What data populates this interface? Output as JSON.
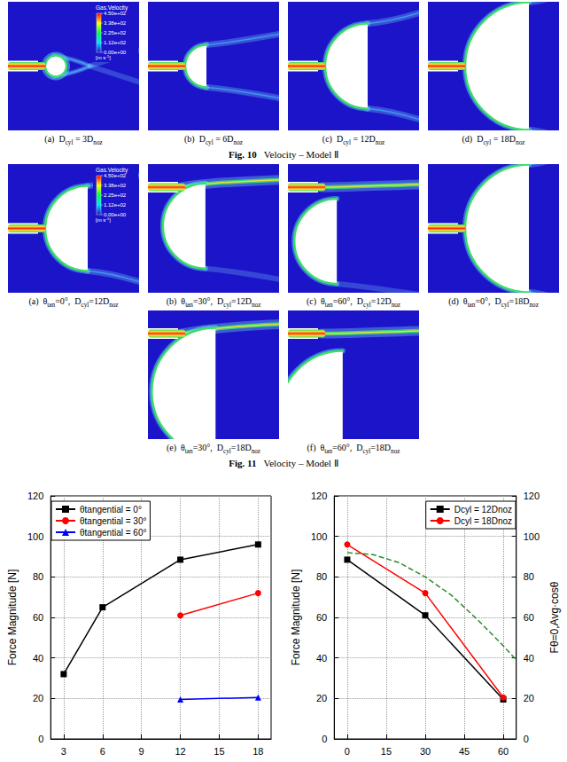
{
  "figures": [
    {
      "label": "Fig. 10",
      "title": "Velocity – Model Ⅱ",
      "colorbar": {
        "title": "Gas.Velocity",
        "range": [
          0,
          450
        ],
        "ticks": [
          {
            "value": 450,
            "label": "4.50e+02"
          },
          {
            "value": 338,
            "label": "3.38e+02"
          },
          {
            "value": 225,
            "label": "2.25e+02"
          },
          {
            "value": 112,
            "label": "1.12e+02"
          },
          {
            "value": 0,
            "label": "0.00e+00"
          }
        ],
        "unit": [
          {
            "text": "[m s"
          },
          {
            "sup": "-1"
          },
          {
            "text": "]"
          }
        ]
      },
      "panels": [
        {
          "caption": [
            {
              "text": "(a)  D"
            },
            {
              "sub": "cyl"
            },
            {
              "text": " = 3D"
            },
            {
              "sub": "noz"
            }
          ],
          "d_cyl": 3,
          "theta_tan": 0
        },
        {
          "caption": [
            {
              "text": "(b)  D"
            },
            {
              "sub": "cyl"
            },
            {
              "text": " = 6D"
            },
            {
              "sub": "noz"
            }
          ],
          "d_cyl": 6,
          "theta_tan": 0
        },
        {
          "caption": [
            {
              "text": "(c)  D"
            },
            {
              "sub": "cyl"
            },
            {
              "text": " = 12D"
            },
            {
              "sub": "noz"
            }
          ],
          "d_cyl": 12,
          "theta_tan": 0
        },
        {
          "caption": [
            {
              "text": "(d)  D"
            },
            {
              "sub": "cyl"
            },
            {
              "text": " = 18D"
            },
            {
              "sub": "noz"
            }
          ],
          "d_cyl": 18,
          "theta_tan": 0
        }
      ]
    },
    {
      "label": "Fig. 11",
      "title": "Velocity – Model Ⅱ",
      "colorbar": {
        "title": "Gas.Velocity",
        "range": [
          0,
          450
        ],
        "ticks": [
          {
            "value": 450,
            "label": "4.50e+02"
          },
          {
            "value": 338,
            "label": "3.38e+02"
          },
          {
            "value": 225,
            "label": "2.25e+02"
          },
          {
            "value": 112,
            "label": "1.12e+02"
          },
          {
            "value": 0,
            "label": "0.00e+00"
          }
        ],
        "unit": [
          {
            "text": "[m s"
          },
          {
            "sup": "-1"
          },
          {
            "text": "]"
          }
        ]
      },
      "panels": [
        {
          "caption": [
            {
              "text": "(a)  θ"
            },
            {
              "sub": "tan"
            },
            {
              "text": "=0°,  D"
            },
            {
              "sub": "cyl"
            },
            {
              "text": "=12D"
            },
            {
              "sub": "noz"
            }
          ],
          "d_cyl": 12,
          "theta_tan": 0
        },
        {
          "caption": [
            {
              "text": "(b)  θ"
            },
            {
              "sub": "tan"
            },
            {
              "text": "=30°,  D"
            },
            {
              "sub": "cyl"
            },
            {
              "text": "=12D"
            },
            {
              "sub": "noz"
            }
          ],
          "d_cyl": 12,
          "theta_tan": 30
        },
        {
          "caption": [
            {
              "text": "(c)  θ"
            },
            {
              "sub": "tan"
            },
            {
              "text": "=60°,  D"
            },
            {
              "sub": "cyl"
            },
            {
              "text": "=12D"
            },
            {
              "sub": "noz"
            }
          ],
          "d_cyl": 12,
          "theta_tan": 60
        },
        {
          "caption": [
            {
              "text": "(d)  θ"
            },
            {
              "sub": "tan"
            },
            {
              "text": "=0°,  D"
            },
            {
              "sub": "cyl"
            },
            {
              "text": "=18D"
            },
            {
              "sub": "noz"
            }
          ],
          "d_cyl": 18,
          "theta_tan": 0
        },
        {
          "caption": [
            {
              "text": "(e)  θ"
            },
            {
              "sub": "tan"
            },
            {
              "text": "=30°,  D"
            },
            {
              "sub": "cyl"
            },
            {
              "text": "=18D"
            },
            {
              "sub": "noz"
            }
          ],
          "d_cyl": 18,
          "theta_tan": 30
        },
        {
          "caption": [
            {
              "text": "(f)  θ"
            },
            {
              "sub": "tan"
            },
            {
              "text": "=60°,  D"
            },
            {
              "sub": "cyl"
            },
            {
              "text": "=18D"
            },
            {
              "sub": "noz"
            }
          ],
          "d_cyl": 18,
          "theta_tan": 60
        }
      ]
    }
  ],
  "chart_data": [
    {
      "type": "line",
      "y_label": "Force Magnitude [N]",
      "xlim": [
        2,
        19
      ],
      "xticks": [
        3,
        6,
        9,
        12,
        15,
        18
      ],
      "ylim": [
        0,
        120
      ],
      "yticks": [
        0,
        20,
        40,
        60,
        80,
        100,
        120
      ],
      "grid": true,
      "legend": "top-left",
      "series": [
        {
          "name": "θtangential = 0°",
          "color": "#000000",
          "marker": "square",
          "x": [
            3,
            6,
            12,
            18
          ],
          "values": [
            32,
            65,
            88.5,
            96
          ]
        },
        {
          "name": "θtangential = 30°",
          "color": "#ff0000",
          "marker": "circle",
          "x": [
            12,
            18
          ],
          "values": [
            61,
            72
          ]
        },
        {
          "name": "θtangential = 60°",
          "color": "#0000ff",
          "marker": "triangle",
          "x": [
            12,
            18
          ],
          "values": [
            19.5,
            20.5
          ]
        }
      ]
    },
    {
      "type": "line",
      "y_label": "Force Magnitude [N]",
      "y2_label": "Fθ=0,Avg·cosθ",
      "xlim": [
        -5,
        65
      ],
      "xticks": [
        0,
        15,
        30,
        45,
        60
      ],
      "ylim": [
        0,
        120
      ],
      "yticks": [
        0,
        20,
        40,
        60,
        80,
        100,
        120
      ],
      "y2lim": [
        0,
        120
      ],
      "y2ticks": [
        0,
        20,
        40,
        60,
        80,
        100,
        120
      ],
      "grid": true,
      "legend": "top-right",
      "series": [
        {
          "name": "Dcyl = 12Dnoz",
          "color": "#000000",
          "marker": "square",
          "x": [
            0,
            30,
            60
          ],
          "values": [
            88.5,
            61,
            19.5
          ]
        },
        {
          "name": "Dcyl = 18Dnoz",
          "color": "#ff0000",
          "marker": "circle",
          "x": [
            0,
            30,
            60
          ],
          "values": [
            96,
            72,
            20.5
          ]
        },
        {
          "color": "#2e8b2e",
          "line_style": "dashed",
          "axis": "y2",
          "x": [
            0,
            10,
            20,
            30,
            40,
            50,
            60,
            65
          ],
          "values": [
            92,
            91,
            87,
            80,
            71,
            59,
            46,
            39
          ]
        }
      ]
    }
  ]
}
